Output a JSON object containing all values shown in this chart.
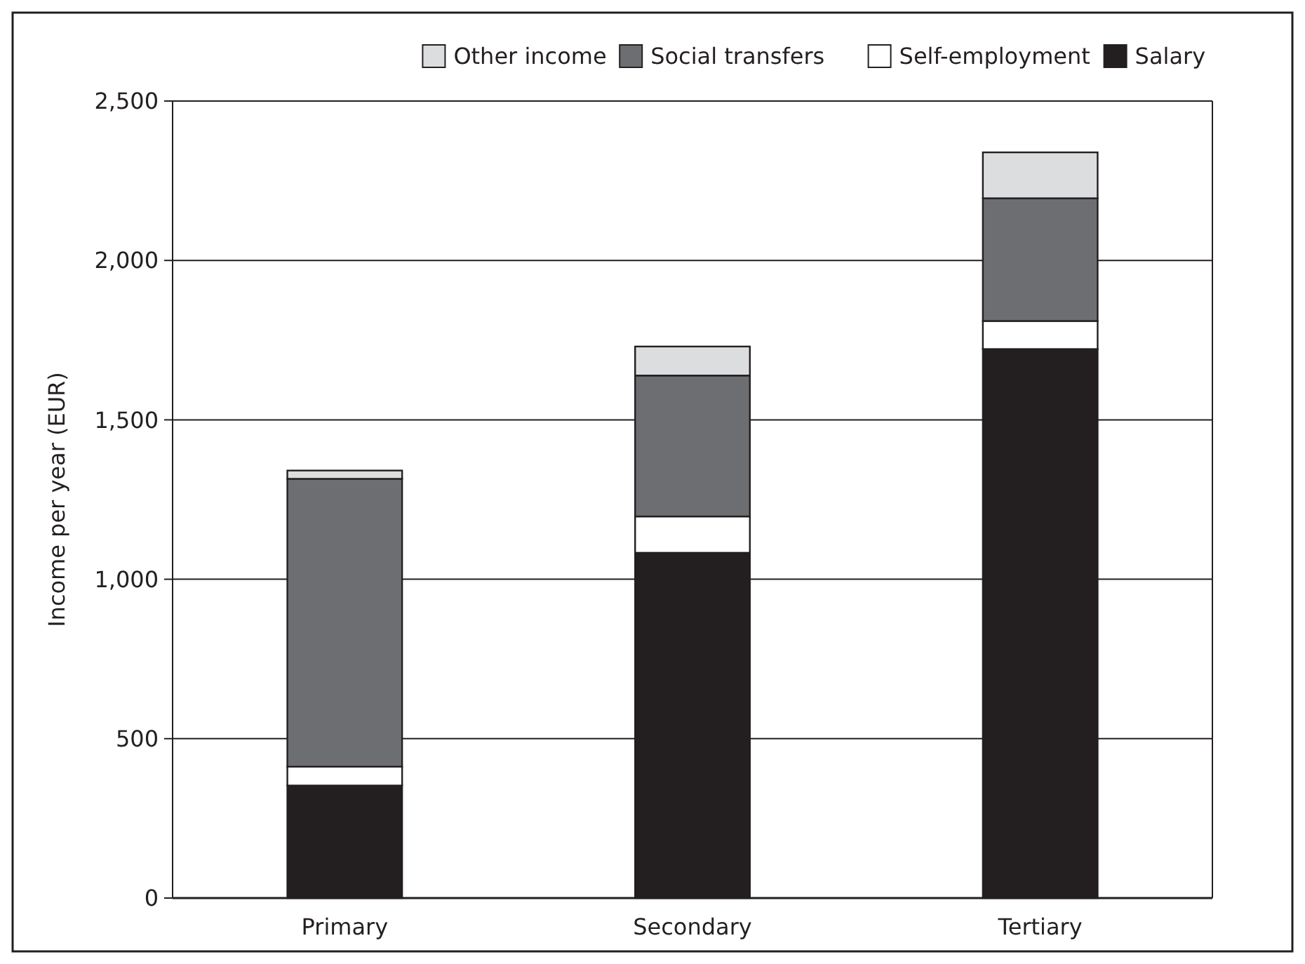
{
  "chart_data": {
    "type": "bar",
    "ylabel": "Income per year (EUR)",
    "categories": [
      "Primary",
      "Secondary",
      "Tertiary"
    ],
    "stacked": true,
    "series": [
      {
        "name": "Salary",
        "color": "#231f20",
        "values": [
          353,
          1083,
          1722
        ]
      },
      {
        "name": "Self-employment",
        "color": "#ffffff",
        "values": [
          59,
          114,
          88
        ]
      },
      {
        "name": "Social transfers",
        "color": "#6d6e71",
        "values": [
          903,
          442,
          385
        ]
      },
      {
        "name": "Other income",
        "color": "#dcdddf",
        "values": [
          26,
          91,
          144
        ]
      }
    ],
    "ylim": [
      0,
      2500
    ],
    "yticks": [
      {
        "value": 0,
        "label": "0"
      },
      {
        "value": 500,
        "label": "500"
      },
      {
        "value": 1000,
        "label": "1,000"
      },
      {
        "value": 1500,
        "label": "1,500"
      },
      {
        "value": 2000,
        "label": "2,000"
      },
      {
        "value": 2500,
        "label": "2,500"
      }
    ],
    "grid": "y",
    "legend": "top"
  }
}
